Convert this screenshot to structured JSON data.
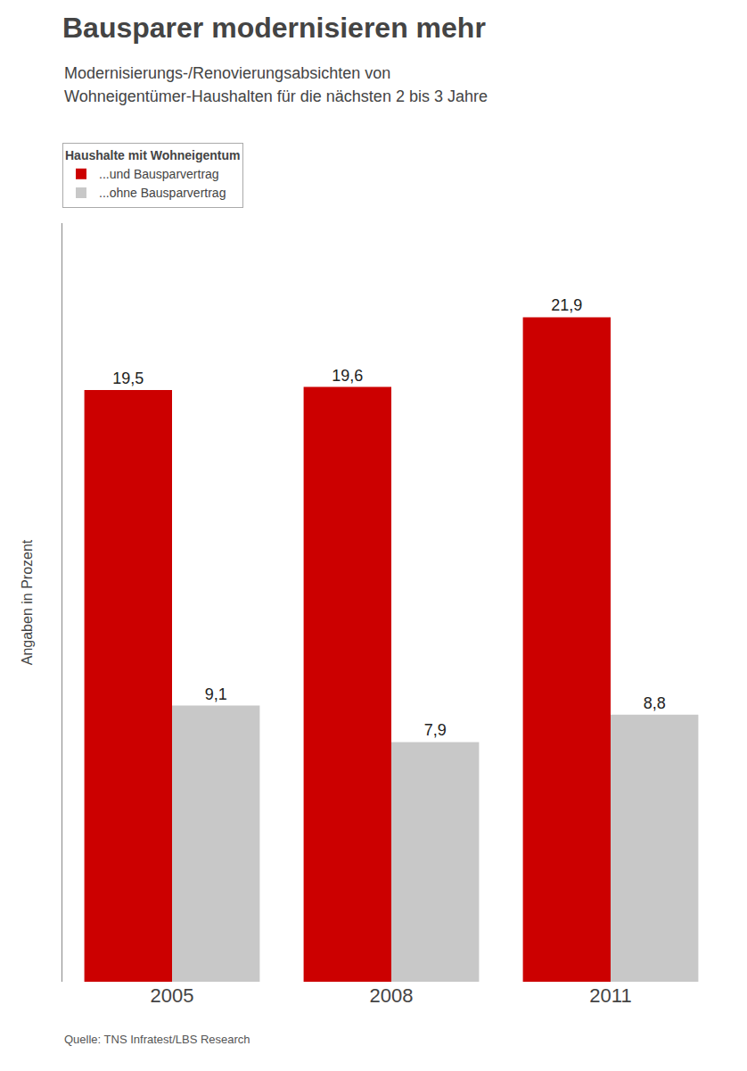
{
  "chart_data": {
    "type": "bar",
    "title": "Bausparer modernisieren mehr",
    "subtitle": [
      "Modernisierungs-/Renovierungsabsichten von",
      "Wohneigentümer-Haushalten für die nächsten 2 bis 3 Jahre"
    ],
    "ylabel": "Angaben in Prozent",
    "source": "Quelle: TNS Infratest/LBS Research",
    "legend_title": "Haushalte mit Wohneigentum",
    "categories": [
      "2005",
      "2008",
      "2011"
    ],
    "series": [
      {
        "name": "...und Bausparvertrag",
        "color": "#cc0000",
        "values": [
          19.5,
          19.6,
          21.9
        ],
        "value_labels": [
          "19,5",
          "19,6",
          "21,9"
        ]
      },
      {
        "name": "...ohne Bausparvertrag",
        "color": "#c8c8c8",
        "values": [
          9.1,
          7.9,
          8.8
        ],
        "value_labels": [
          "9,1",
          "7,9",
          "8,8"
        ]
      }
    ],
    "ylim": [
      0,
      25
    ],
    "grid": false,
    "legend": "upper left",
    "data_labels": true,
    "tick_labels": "x"
  }
}
